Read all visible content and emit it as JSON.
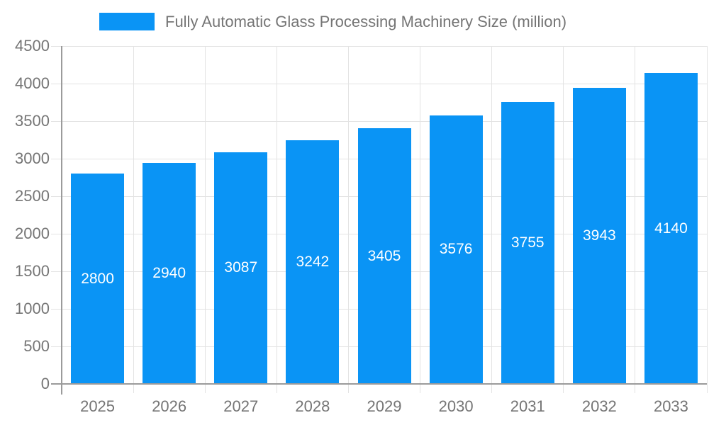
{
  "legend": {
    "items": [
      {
        "label": "Fully Automatic Glass Processing Machinery Size (million)",
        "color": "#0a94f5"
      }
    ]
  },
  "chart_data": {
    "type": "bar",
    "title": "Fully Automatic Glass Processing Machinery Size (million)",
    "categories": [
      "2025",
      "2026",
      "2027",
      "2028",
      "2029",
      "2030",
      "2031",
      "2032",
      "2033"
    ],
    "values": [
      2800,
      2940,
      3087,
      3242,
      3405,
      3576,
      3755,
      3943,
      4140
    ],
    "xlabel": "",
    "ylabel": "",
    "ylim": [
      0,
      4500
    ],
    "ytick_step": 500,
    "grid": "on",
    "legend_position": "top",
    "bar_color": "#0a94f5",
    "value_label_color": "#ffffff",
    "axis_color": "#9b9b9b",
    "gridline_color": "#e3e3e3",
    "tick_label_color": "#757575"
  }
}
